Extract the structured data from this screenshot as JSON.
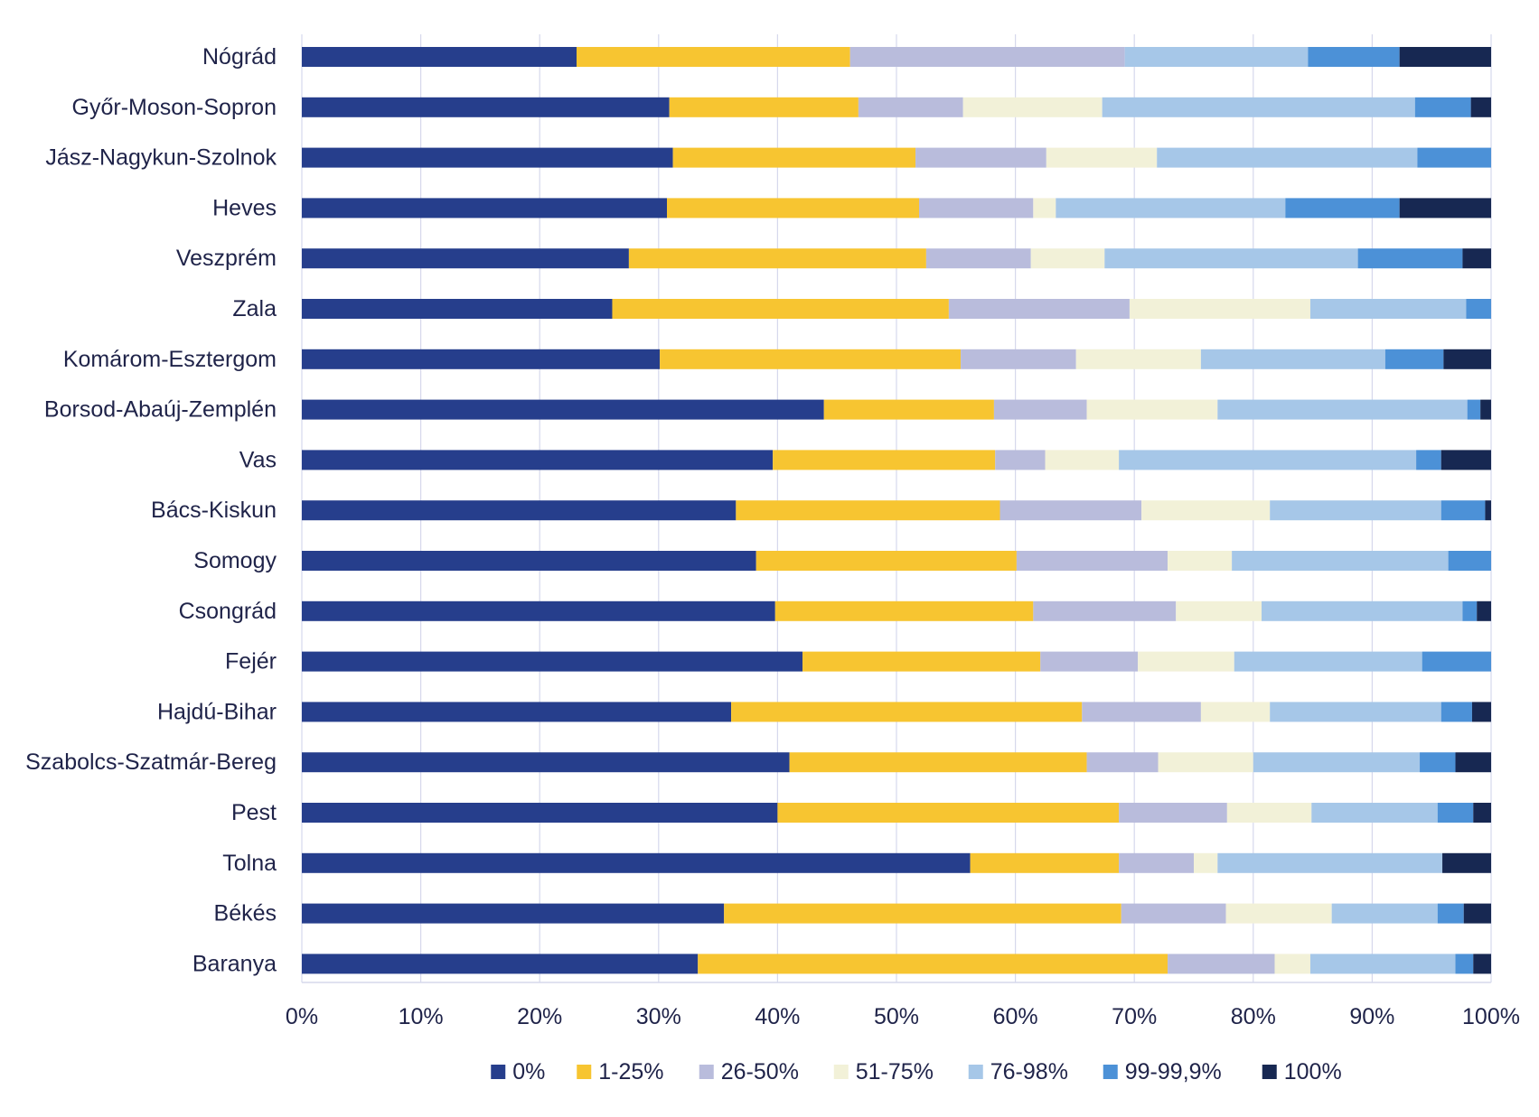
{
  "chart_data": {
    "type": "bar",
    "orientation": "horizontal",
    "stacked": "percent",
    "title": "",
    "xlabel": "",
    "ylabel": "",
    "xlim": [
      0,
      100
    ],
    "x_ticks": [
      "0%",
      "10%",
      "20%",
      "30%",
      "40%",
      "50%",
      "60%",
      "70%",
      "80%",
      "90%",
      "100%"
    ],
    "grid": "vertical",
    "legend_position": "bottom",
    "categories": [
      "Nógrád",
      "Győr-Moson-Sopron",
      "Jász-Nagykun-Szolnok",
      "Heves",
      "Veszprém",
      "Zala",
      "Komárom-Esztergom",
      "Borsod-Abaúj-Zemplén",
      "Vas",
      "Bács-Kiskun",
      "Somogy",
      "Csongrád",
      "Fejér",
      "Hajdú-Bihar",
      "Szabolcs-Szatmár-Bereg",
      "Pest",
      "Tolna",
      "Békés",
      "Baranya"
    ],
    "series": [
      {
        "name": "0%",
        "color": "#263E8C",
        "values": [
          23.1,
          30.9,
          31.2,
          30.7,
          27.5,
          26.1,
          30.1,
          43.9,
          39.6,
          36.5,
          38.2,
          39.8,
          42.1,
          36.1,
          41.0,
          40.0,
          56.2,
          35.5,
          33.3
        ]
      },
      {
        "name": "1-25%",
        "color": "#F7C531",
        "values": [
          23.0,
          15.9,
          20.4,
          21.2,
          25.0,
          28.3,
          25.3,
          14.3,
          18.7,
          22.2,
          21.9,
          21.7,
          20.0,
          29.5,
          25.0,
          28.7,
          12.5,
          33.4,
          39.5
        ]
      },
      {
        "name": "26-50%",
        "color": "#B9BCDC",
        "values": [
          23.1,
          8.8,
          11.0,
          9.6,
          8.8,
          15.2,
          9.7,
          7.8,
          4.2,
          11.9,
          12.7,
          12.0,
          8.2,
          10.0,
          6.0,
          9.1,
          6.3,
          8.8,
          9.0
        ]
      },
      {
        "name": "51-75%",
        "color": "#F2F1D8",
        "values": [
          0.0,
          11.7,
          9.3,
          1.9,
          6.2,
          15.2,
          10.5,
          11.0,
          6.2,
          10.8,
          5.4,
          7.2,
          8.1,
          5.8,
          8.0,
          7.1,
          2.0,
          8.9,
          3.0
        ]
      },
      {
        "name": "76-98%",
        "color": "#A6C7E8",
        "values": [
          15.4,
          26.3,
          21.9,
          19.3,
          21.3,
          13.1,
          15.5,
          21.0,
          25.0,
          14.4,
          18.2,
          16.9,
          15.8,
          14.4,
          14.0,
          10.6,
          18.9,
          8.9,
          12.2
        ]
      },
      {
        "name": "99-99,9%",
        "color": "#4C91D7",
        "values": [
          7.7,
          4.7,
          6.2,
          9.6,
          8.8,
          2.1,
          4.9,
          1.1,
          2.1,
          3.7,
          3.6,
          1.2,
          5.8,
          2.6,
          3.0,
          3.0,
          0.0,
          2.2,
          1.5
        ]
      },
      {
        "name": "100%",
        "color": "#172852",
        "values": [
          7.7,
          1.7,
          0.0,
          7.7,
          2.4,
          0.0,
          4.0,
          0.9,
          4.2,
          0.5,
          0.0,
          1.2,
          0.0,
          1.6,
          3.0,
          1.5,
          4.1,
          2.3,
          1.5
        ]
      }
    ]
  }
}
